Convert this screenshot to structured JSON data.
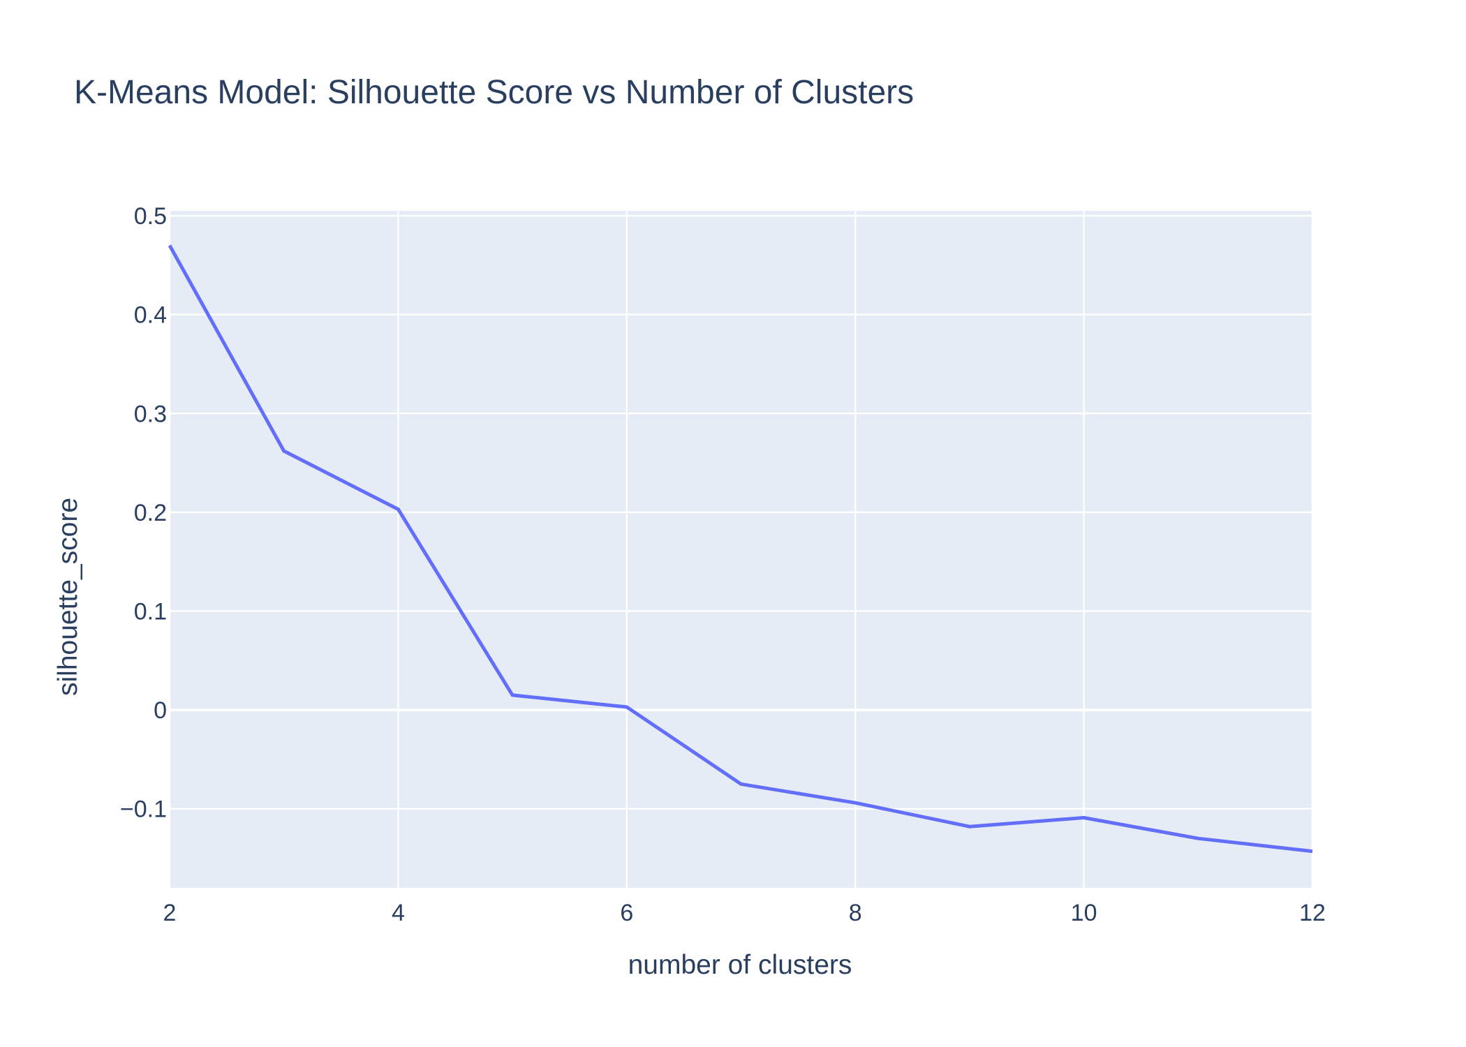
{
  "chart_data": {
    "type": "line",
    "title": "K-Means Model: Silhouette Score vs Number of Clusters",
    "xlabel": "number of clusters",
    "ylabel": "silhouette_score",
    "x": [
      2,
      3,
      4,
      5,
      6,
      7,
      8,
      9,
      10,
      11,
      12
    ],
    "series": [
      {
        "values": [
          0.47,
          0.262,
          0.203,
          0.015,
          0.003,
          -0.075,
          -0.094,
          -0.118,
          -0.109,
          -0.13,
          -0.143
        ]
      }
    ],
    "xlim": [
      2,
      12
    ],
    "ylim": [
      -0.18,
      0.505
    ],
    "x_ticks": [
      {
        "value": 2,
        "label": "2"
      },
      {
        "value": 4,
        "label": "4"
      },
      {
        "value": 6,
        "label": "6"
      },
      {
        "value": 8,
        "label": "8"
      },
      {
        "value": 10,
        "label": "10"
      },
      {
        "value": 12,
        "label": "12"
      }
    ],
    "y_ticks": [
      {
        "value": 0.5,
        "label": "0.5"
      },
      {
        "value": 0.4,
        "label": "0.4"
      },
      {
        "value": 0.3,
        "label": "0.3"
      },
      {
        "value": 0.2,
        "label": "0.2"
      },
      {
        "value": 0.1,
        "label": "0.1"
      },
      {
        "value": 0,
        "label": "0"
      },
      {
        "value": -0.1,
        "label": "−0.1"
      }
    ],
    "grid": true,
    "legend": "none"
  },
  "colors": {
    "plot_background": "#E5ECF6",
    "grid": "#FFFFFF",
    "line": "#636EFA",
    "text": "#2A3F5F"
  }
}
